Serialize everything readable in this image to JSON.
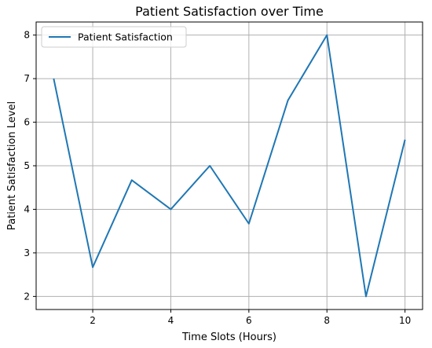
{
  "chart_data": {
    "type": "line",
    "title": "Patient Satisfaction over Time",
    "xlabel": "Time Slots (Hours)",
    "ylabel": "Patient Satisfaction Level",
    "x": [
      1,
      2,
      3,
      4,
      5,
      6,
      7,
      8,
      9,
      10
    ],
    "series": [
      {
        "name": "Patient Satisfaction",
        "values": [
          7.0,
          2.67,
          4.67,
          4.0,
          5.0,
          3.67,
          6.5,
          8.0,
          2.0,
          5.6
        ],
        "color": "#1f77b4"
      }
    ],
    "xlim": [
      0.55,
      10.45
    ],
    "ylim": [
      1.7,
      8.3
    ],
    "xticks": [
      2,
      4,
      6,
      8,
      10
    ],
    "yticks": [
      2,
      3,
      4,
      5,
      6,
      7,
      8
    ],
    "grid": true,
    "legend_position": "upper-left"
  }
}
